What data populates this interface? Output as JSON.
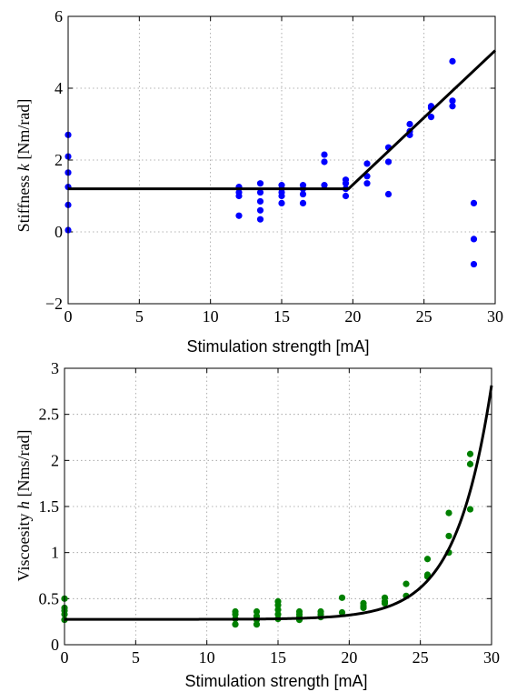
{
  "chart_data": [
    {
      "type": "scatter",
      "title": "",
      "xlabel": "Stimulation strength [mA]",
      "ylabel_parts": [
        "Stiffness ",
        "k",
        " [Nm/rad]"
      ],
      "xlim": [
        0,
        30
      ],
      "ylim": [
        -2,
        6
      ],
      "xticks": [
        0,
        5,
        10,
        15,
        20,
        25,
        30
      ],
      "yticks": [
        -2,
        0,
        2,
        4,
        6
      ],
      "grid": true,
      "colors": {
        "points": "#0000ff",
        "fit": "#000000"
      },
      "points": {
        "x": [
          0,
          0,
          0,
          0,
          0,
          0,
          12,
          12,
          12,
          12,
          13.5,
          13.5,
          13.5,
          13.5,
          13.5,
          15,
          15,
          15,
          15,
          15,
          16.5,
          16.5,
          16.5,
          16.5,
          18,
          18,
          18,
          19.5,
          19.5,
          19.5,
          19.5,
          21,
          21,
          21,
          22.5,
          22.5,
          22.5,
          24,
          24,
          24,
          25.5,
          25.5,
          25.5,
          27,
          27,
          27,
          28.5,
          28.5,
          28.5
        ],
        "y": [
          2.7,
          2.1,
          1.65,
          1.25,
          0.75,
          0.05,
          1.25,
          1.1,
          1.0,
          0.45,
          1.35,
          1.1,
          0.85,
          0.6,
          0.35,
          1.3,
          1.2,
          1.1,
          1.0,
          0.8,
          1.3,
          1.2,
          1.05,
          0.8,
          2.15,
          1.95,
          1.3,
          1.45,
          1.35,
          1.2,
          1.0,
          1.9,
          1.55,
          1.35,
          2.35,
          1.95,
          1.05,
          3.0,
          2.8,
          2.7,
          3.5,
          3.45,
          3.2,
          4.75,
          3.65,
          3.5,
          0.8,
          -0.2,
          -0.9
        ]
      },
      "fit": {
        "x": [
          0,
          19.7,
          30
        ],
        "y": [
          1.2,
          1.2,
          5.05
        ]
      }
    },
    {
      "type": "scatter",
      "title": "",
      "xlabel": "Stimulation strength [mA]",
      "ylabel_parts": [
        "Viscoesity ",
        "h",
        " [Nms/rad]"
      ],
      "xlim": [
        0,
        30
      ],
      "ylim": [
        0,
        3
      ],
      "xticks": [
        0,
        5,
        10,
        15,
        20,
        25,
        30
      ],
      "yticks": [
        0,
        0.5,
        1,
        1.5,
        2,
        2.5,
        3
      ],
      "grid": true,
      "colors": {
        "points": "#008000",
        "fit": "#000000"
      },
      "points": {
        "x": [
          0,
          0,
          0,
          0,
          0,
          12,
          12,
          12,
          12,
          13.5,
          13.5,
          13.5,
          13.5,
          15,
          15,
          15,
          15,
          15,
          16.5,
          16.5,
          16.5,
          16.5,
          18,
          18,
          18,
          19.5,
          19.5,
          21,
          21,
          21,
          22.5,
          22.5,
          22.5,
          24,
          24,
          25.5,
          25.5,
          25.5,
          27,
          27,
          27,
          28.5,
          28.5,
          28.5
        ],
        "y": [
          0.5,
          0.4,
          0.37,
          0.33,
          0.27,
          0.36,
          0.33,
          0.28,
          0.22,
          0.36,
          0.31,
          0.27,
          0.22,
          0.47,
          0.43,
          0.38,
          0.33,
          0.28,
          0.36,
          0.33,
          0.3,
          0.27,
          0.36,
          0.33,
          0.3,
          0.51,
          0.35,
          0.45,
          0.42,
          0.4,
          0.51,
          0.47,
          0.45,
          0.66,
          0.53,
          0.93,
          0.76,
          0.74,
          1.43,
          1.18,
          1.0,
          2.07,
          1.96,
          1.47
        ]
      },
      "fit": {
        "baseline": 0.275,
        "amplitude": 1.56e-05,
        "rate": 0.4
      }
    }
  ]
}
